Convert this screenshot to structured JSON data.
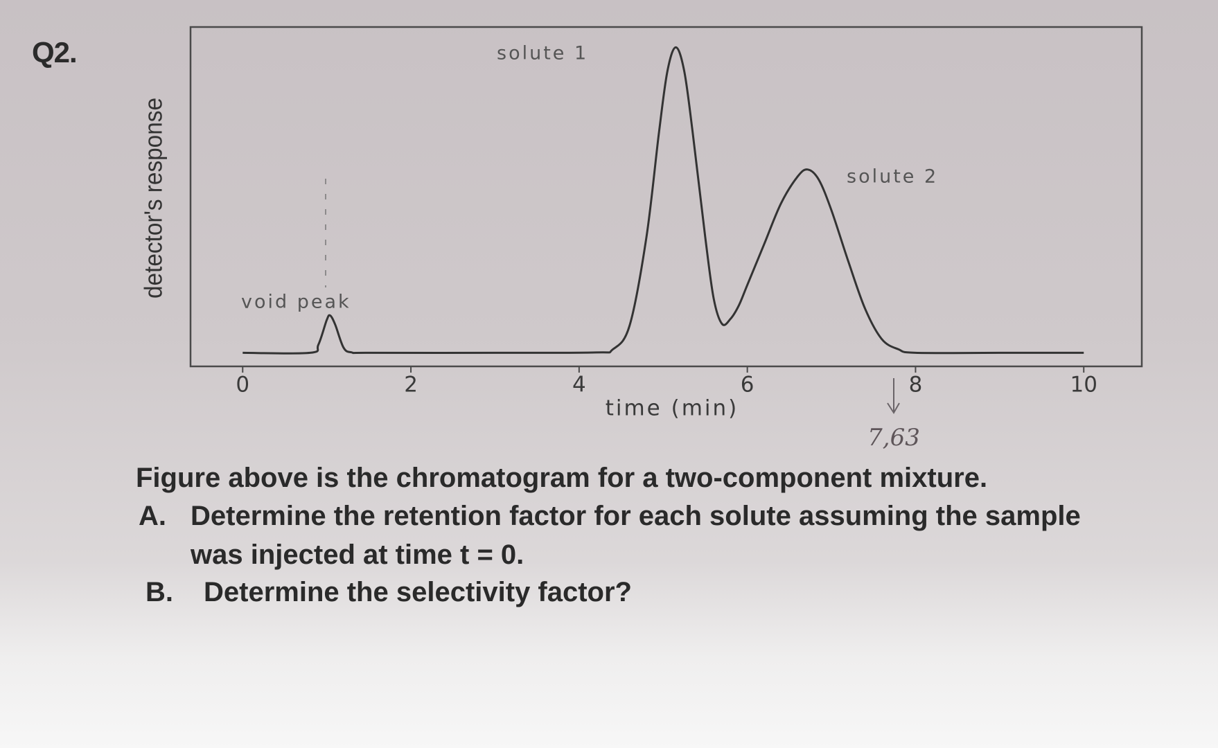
{
  "question": "Q2.",
  "chart_data": {
    "type": "line",
    "x_label": "time (min)",
    "y_label": "detector's response",
    "annotations": [
      "solute 1",
      "solute 2",
      "void peak"
    ],
    "x": [
      0,
      0.8,
      0.9,
      1.0,
      1.04,
      1.1,
      1.2,
      1.3,
      1.5,
      3,
      4.2,
      4.4,
      4.6,
      4.8,
      4.95,
      5.05,
      5.15,
      5.25,
      5.35,
      5.5,
      5.6,
      5.7,
      5.8,
      5.9,
      6.0,
      6.2,
      6.4,
      6.6,
      6.72,
      6.85,
      7.0,
      7.2,
      7.4,
      7.6,
      7.8,
      8.0,
      9,
      10
    ],
    "values": [
      0.04,
      0.04,
      0.064,
      0.137,
      0.15,
      0.123,
      0.055,
      0.041,
      0.04,
      0.04,
      0.041,
      0.05,
      0.12,
      0.38,
      0.69,
      0.87,
      0.94,
      0.87,
      0.69,
      0.38,
      0.2,
      0.125,
      0.14,
      0.18,
      0.24,
      0.36,
      0.48,
      0.56,
      0.58,
      0.55,
      0.46,
      0.31,
      0.17,
      0.08,
      0.05,
      0.04,
      0.04,
      0.04
    ],
    "color": "#333333",
    "xlim": [
      -0.62,
      10.69
    ],
    "ylim": [
      0,
      1
    ],
    "xticks": [
      0,
      2,
      4,
      6,
      8,
      10
    ]
  },
  "handwritten_note": "7,63",
  "text": {
    "caption": "Figure  above is the chromatogram for a two-component mixture.",
    "items": [
      {
        "label": "A.",
        "text": "Determine the retention factor for each solute assuming the sample was injected at time t = 0."
      },
      {
        "label": "B.",
        "text": "Determine the selectivity factor?"
      }
    ]
  }
}
